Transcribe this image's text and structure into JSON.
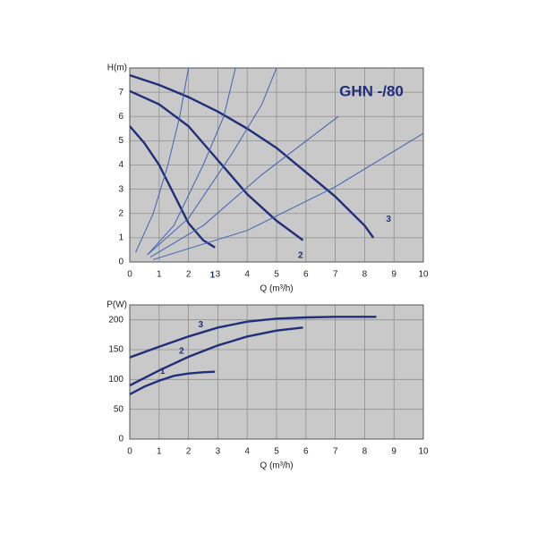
{
  "chart_data": [
    {
      "type": "line",
      "title": "GHN -/80",
      "y_label": "H(m)",
      "x_label": "Q (m³/h)",
      "xlim": [
        0,
        10
      ],
      "xticks": [
        0,
        1,
        2,
        3,
        4,
        5,
        6,
        7,
        8,
        9,
        10
      ],
      "ylim": [
        0,
        8
      ],
      "yticks": [
        0,
        1,
        2,
        3,
        4,
        5,
        6,
        7
      ],
      "grid": true,
      "series": [
        {
          "name": "1",
          "color": "#1f2f7a",
          "x": [
            0,
            0.5,
            1,
            1.5,
            2,
            2.5,
            2.9
          ],
          "values": [
            5.6,
            4.9,
            4.0,
            2.8,
            1.6,
            0.9,
            0.6
          ]
        },
        {
          "name": "2",
          "color": "#1f2f7a",
          "x": [
            0,
            1,
            2,
            3,
            4,
            5,
            5.9
          ],
          "values": [
            7.05,
            6.5,
            5.6,
            4.2,
            2.8,
            1.7,
            0.9
          ]
        },
        {
          "name": "3",
          "color": "#1f2f7a",
          "x": [
            0,
            1,
            2,
            3,
            4,
            5,
            6,
            7,
            8,
            8.3
          ],
          "values": [
            7.7,
            7.3,
            6.8,
            6.2,
            5.5,
            4.7,
            3.7,
            2.7,
            1.5,
            1.0
          ]
        },
        {
          "color": "#3f63b5",
          "x": [
            0.2,
            0.8,
            1.3,
            1.7,
            2.0
          ],
          "values": [
            0.4,
            2,
            4,
            6,
            8
          ]
        },
        {
          "color": "#3f63b5",
          "x": [
            0.6,
            1.5,
            2.5,
            3.2,
            3.6
          ],
          "values": [
            0.3,
            1.5,
            4,
            6,
            8
          ]
        },
        {
          "color": "#3f63b5",
          "x": [
            0.6,
            2,
            3.5,
            4.5,
            5.0
          ],
          "values": [
            0.3,
            1.8,
            4.5,
            6.5,
            8
          ]
        },
        {
          "color": "#3f63b5",
          "x": [
            0.7,
            2.5,
            4.5,
            7.1
          ],
          "values": [
            0.2,
            1.5,
            3.6,
            6
          ]
        },
        {
          "color": "#3f63b5",
          "x": [
            0.8,
            4,
            7,
            10
          ],
          "values": [
            0.1,
            1.3,
            3.1,
            5.3
          ]
        }
      ]
    },
    {
      "type": "line",
      "y_label": "P(W)",
      "x_label": "Q (m³/h)",
      "xlim": [
        0,
        10
      ],
      "xticks": [
        0,
        1,
        2,
        3,
        4,
        5,
        6,
        7,
        8,
        9,
        10
      ],
      "ylim": [
        0,
        225
      ],
      "yticks": [
        0,
        50,
        100,
        150,
        200
      ],
      "grid": true,
      "series": [
        {
          "name": "1",
          "color": "#1f2f7a",
          "x": [
            0,
            0.5,
            1,
            1.5,
            2,
            2.5,
            2.9
          ],
          "values": [
            75,
            88,
            98,
            106,
            110,
            112,
            113
          ]
        },
        {
          "name": "2",
          "color": "#1f2f7a",
          "x": [
            0,
            1,
            2,
            3,
            4,
            5,
            5.9
          ],
          "values": [
            90,
            115,
            138,
            157,
            172,
            182,
            187
          ]
        },
        {
          "name": "3",
          "color": "#1f2f7a",
          "x": [
            0,
            1,
            2,
            3,
            4,
            5,
            6,
            7,
            8.4
          ],
          "values": [
            137,
            155,
            172,
            187,
            197,
            202,
            204,
            205,
            205
          ]
        }
      ]
    }
  ]
}
